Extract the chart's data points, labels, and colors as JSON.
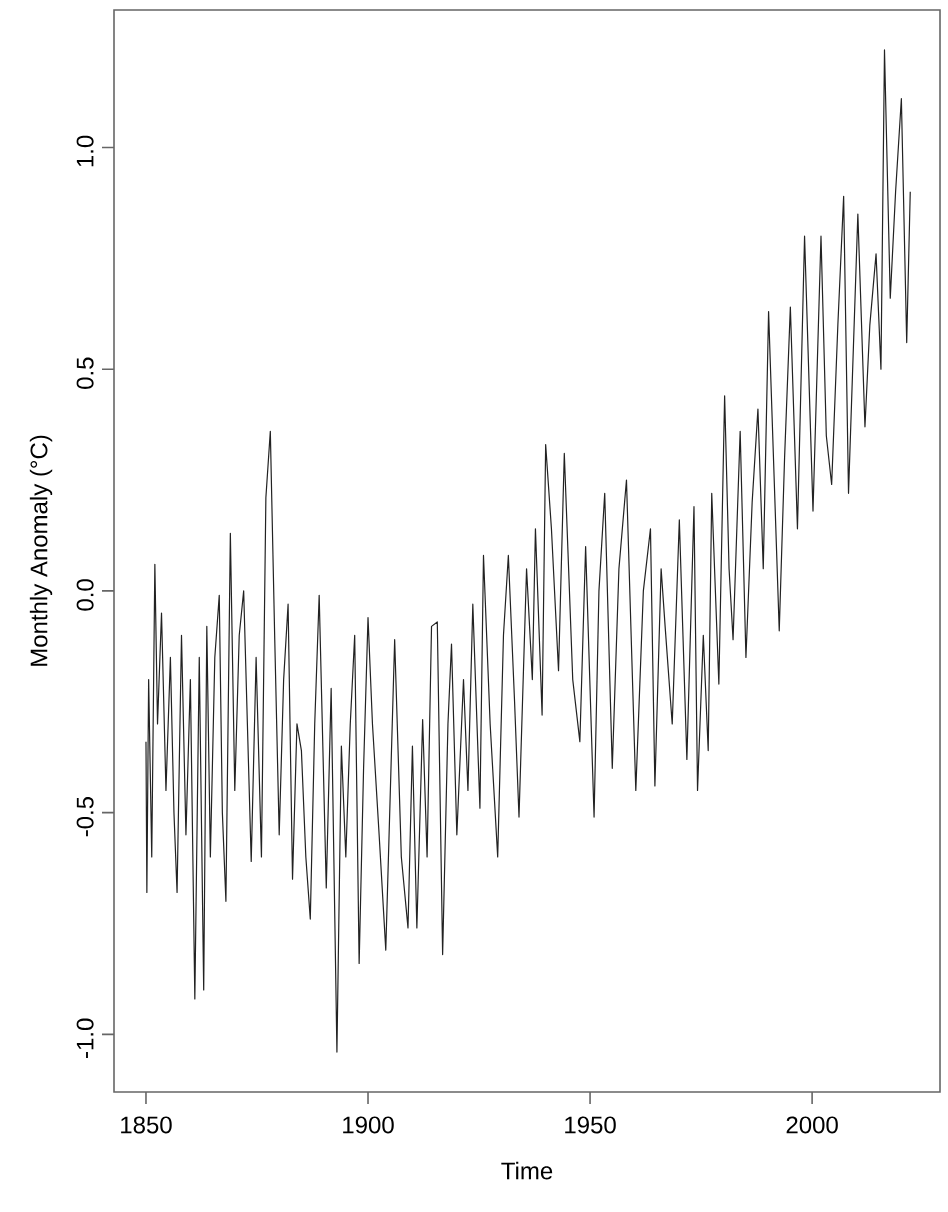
{
  "chart_data": {
    "type": "line",
    "xlabel": "Time",
    "ylabel": "Monthly Anomaly (°C)",
    "color": "#222222",
    "x": [
      1850,
      1850.2,
      1850.6,
      1851.3,
      1852,
      1852.6,
      1853.5,
      1854.5,
      1855.5,
      1856.3,
      1857,
      1858,
      1859,
      1860,
      1861,
      1862,
      1863,
      1863.7,
      1864.5,
      1865.5,
      1866.5,
      1867.2,
      1868,
      1869,
      1870,
      1871,
      1872,
      1873.7,
      1874.8,
      1876,
      1877,
      1878,
      1879,
      1880,
      1881,
      1882,
      1883,
      1884,
      1885,
      1886,
      1887,
      1888,
      1889,
      1890.6,
      1891.7,
      1893,
      1894,
      1895,
      1896,
      1897,
      1898,
      1899,
      1900,
      1901,
      1902.5,
      1904,
      1906,
      1907.5,
      1909,
      1910,
      1911,
      1912.3,
      1913.3,
      1914.3,
      1915.6,
      1916.8,
      1918,
      1918.8,
      1920,
      1921.5,
      1922.5,
      1923.6,
      1925.2,
      1926,
      1927.5,
      1929.2,
      1930.5,
      1931.6,
      1933,
      1934,
      1935.7,
      1937,
      1937.7,
      1939.2,
      1940,
      1941.3,
      1942.9,
      1944.2,
      1946.1,
      1947.7,
      1949,
      1950.9,
      1952,
      1953.3,
      1955,
      1956.5,
      1958.2,
      1960.3,
      1962,
      1963.6,
      1964.6,
      1966,
      1966.9,
      1968.5,
      1970.1,
      1971.8,
      1973.4,
      1974.2,
      1975.5,
      1976.6,
      1977.4,
      1979,
      1980.3,
      1981.3,
      1982.2,
      1983.8,
      1985.1,
      1986.5,
      1987.8,
      1989,
      1990.2,
      1992.6,
      1993.8,
      1995.1,
      1996.7,
      1998.3,
      2000.2,
      2002,
      2003.2,
      2004.4,
      2005.8,
      2007.1,
      2008.2,
      2009.3,
      2010.3,
      2011.9,
      2013,
      2014.4,
      2015.5,
      2016.3,
      2017.6,
      2018.8,
      2020.1,
      2021.3,
      2022.1
    ],
    "values": [
      -0.34,
      -0.68,
      -0.2,
      -0.6,
      0.06,
      -0.3,
      -0.05,
      -0.45,
      -0.15,
      -0.5,
      -0.68,
      -0.1,
      -0.55,
      -0.2,
      -0.92,
      -0.15,
      -0.9,
      -0.08,
      -0.6,
      -0.15,
      -0.01,
      -0.5,
      -0.7,
      0.13,
      -0.45,
      -0.1,
      0.0,
      -0.61,
      -0.15,
      -0.6,
      0.21,
      0.36,
      -0.11,
      -0.55,
      -0.2,
      -0.03,
      -0.65,
      -0.3,
      -0.36,
      -0.6,
      -0.74,
      -0.3,
      -0.01,
      -0.67,
      -0.22,
      -1.04,
      -0.35,
      -0.6,
      -0.3,
      -0.1,
      -0.84,
      -0.4,
      -0.06,
      -0.3,
      -0.55,
      -0.81,
      -0.11,
      -0.6,
      -0.76,
      -0.35,
      -0.76,
      -0.29,
      -0.6,
      -0.08,
      -0.07,
      -0.82,
      -0.3,
      -0.12,
      -0.55,
      -0.2,
      -0.45,
      -0.03,
      -0.49,
      0.08,
      -0.3,
      -0.6,
      -0.1,
      0.08,
      -0.25,
      -0.51,
      0.05,
      -0.2,
      0.14,
      -0.28,
      0.33,
      0.14,
      -0.18,
      0.31,
      -0.2,
      -0.34,
      0.1,
      -0.51,
      0.0,
      0.22,
      -0.4,
      0.05,
      0.25,
      -0.45,
      0.0,
      0.14,
      -0.44,
      0.05,
      -0.08,
      -0.3,
      0.16,
      -0.38,
      0.19,
      -0.45,
      -0.1,
      -0.36,
      0.22,
      -0.21,
      0.44,
      0.05,
      -0.11,
      0.36,
      -0.15,
      0.2,
      0.41,
      0.05,
      0.63,
      -0.09,
      0.3,
      0.64,
      0.14,
      0.8,
      0.18,
      0.8,
      0.35,
      0.24,
      0.6,
      0.89,
      0.22,
      0.55,
      0.85,
      0.37,
      0.6,
      0.76,
      0.5,
      1.22,
      0.66,
      0.9,
      1.11,
      0.56,
      0.9
    ],
    "xlim": [
      1842.8,
      2028.8
    ],
    "ylim": [
      -1.13,
      1.31
    ],
    "xticks": [
      1850,
      1900,
      1950,
      2000
    ],
    "yticks": [
      {
        "value": -1,
        "label": "-1.0"
      },
      {
        "value": -0.5,
        "label": "-0.5"
      },
      {
        "value": 0,
        "label": "0.0"
      },
      {
        "value": 0.5,
        "label": "0.5"
      },
      {
        "value": 1,
        "label": "1.0"
      }
    ]
  }
}
